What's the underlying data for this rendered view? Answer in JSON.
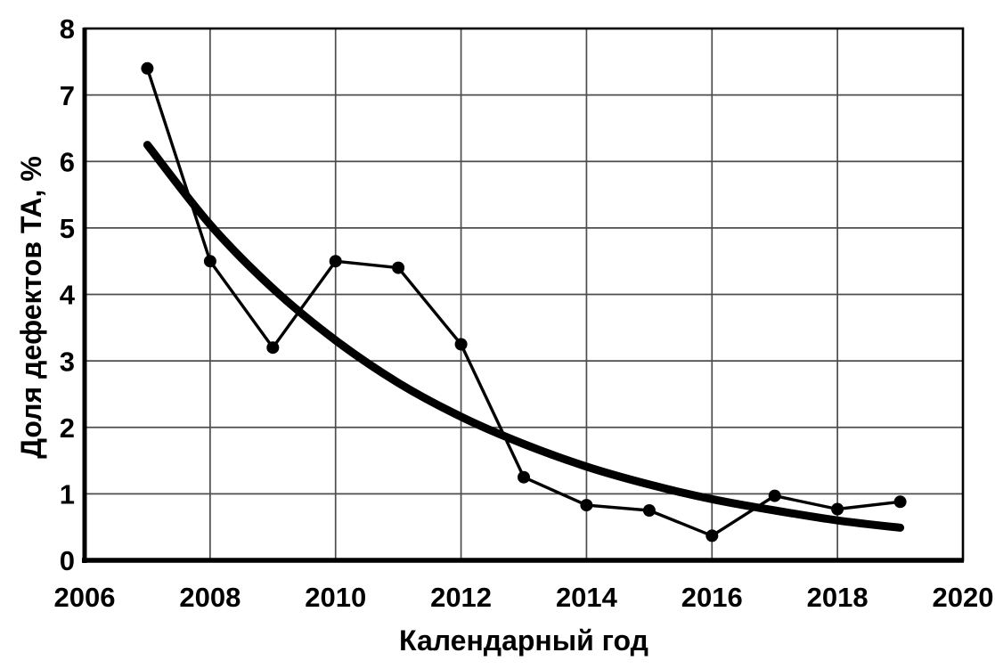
{
  "figure": {
    "background": "#ffffff"
  },
  "chart_data": {
    "type": "line",
    "title": "",
    "xlabel": "Календарный год",
    "ylabel": "Доля дефектов ТА, %",
    "xlim": [
      2006,
      2020
    ],
    "ylim": [
      0,
      8
    ],
    "x_ticks": [
      2006,
      2008,
      2010,
      2012,
      2014,
      2016,
      2018,
      2020
    ],
    "y_ticks": [
      0,
      1,
      2,
      3,
      4,
      5,
      6,
      7,
      8
    ],
    "grid": "both",
    "legend_position": "none",
    "series": [
      {
        "name": "defect-share-observed",
        "style": "thin-line-with-round-markers",
        "x": [
          2007,
          2008,
          2009,
          2010,
          2011,
          2012,
          2013,
          2014,
          2015,
          2016,
          2017,
          2018,
          2019
        ],
        "values": [
          7.4,
          4.5,
          3.2,
          4.5,
          4.4,
          3.25,
          1.25,
          0.83,
          0.75,
          0.37,
          0.97,
          0.77,
          0.88
        ]
      },
      {
        "name": "trend-smooth-curve",
        "style": "thick-smooth-line-no-markers",
        "x": [
          2007,
          2008,
          2009,
          2010,
          2011,
          2012,
          2013,
          2014,
          2015,
          2016,
          2017,
          2018,
          2019
        ],
        "values": [
          6.25,
          5.05,
          4.09,
          3.31,
          2.67,
          2.16,
          1.75,
          1.41,
          1.14,
          0.92,
          0.75,
          0.6,
          0.49
        ]
      }
    ],
    "colors": {
      "series": "#000000",
      "trend": "#000000",
      "grid": "#4d4d4d",
      "border": "#000000",
      "background": "#ffffff"
    }
  }
}
